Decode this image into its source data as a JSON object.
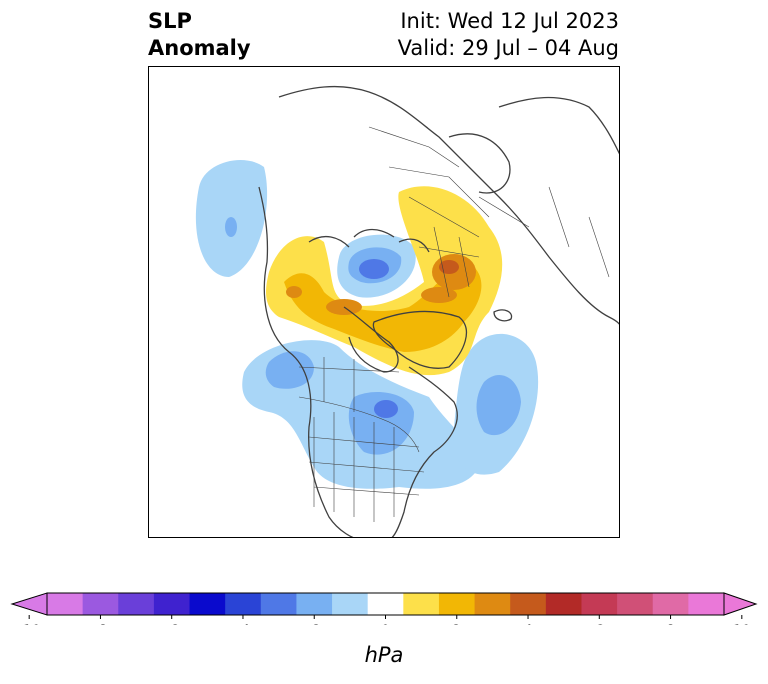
{
  "title": {
    "left_line1": "SLP",
    "left_line2": "Anomaly",
    "init": "Init: Wed 12 Jul 2023",
    "valid": "Valid: 29 Jul – 04 Aug"
  },
  "colorbar": {
    "label": "hPa",
    "ticks": [
      "-10",
      "-8",
      "-6",
      "-4",
      "-2",
      "0",
      "2",
      "4",
      "6",
      "8",
      "10"
    ],
    "colors": [
      "#d87ae6",
      "#9b59e0",
      "#6a3fd9",
      "#3f22cf",
      "#0a0acd",
      "#2a44d6",
      "#4f78e6",
      "#78b0f2",
      "#a9d6f7",
      "#ffffff",
      "#fde04a",
      "#f2b705",
      "#de8a12",
      "#c55a1c",
      "#b22a27",
      "#c43a55",
      "#d05077",
      "#e06aa6",
      "#ea78d8"
    ],
    "under_color": "#d87ae6",
    "over_color": "#ea78d8"
  },
  "map": {
    "projection": "north-polar-stereographic",
    "region": "North America / Arctic"
  }
}
